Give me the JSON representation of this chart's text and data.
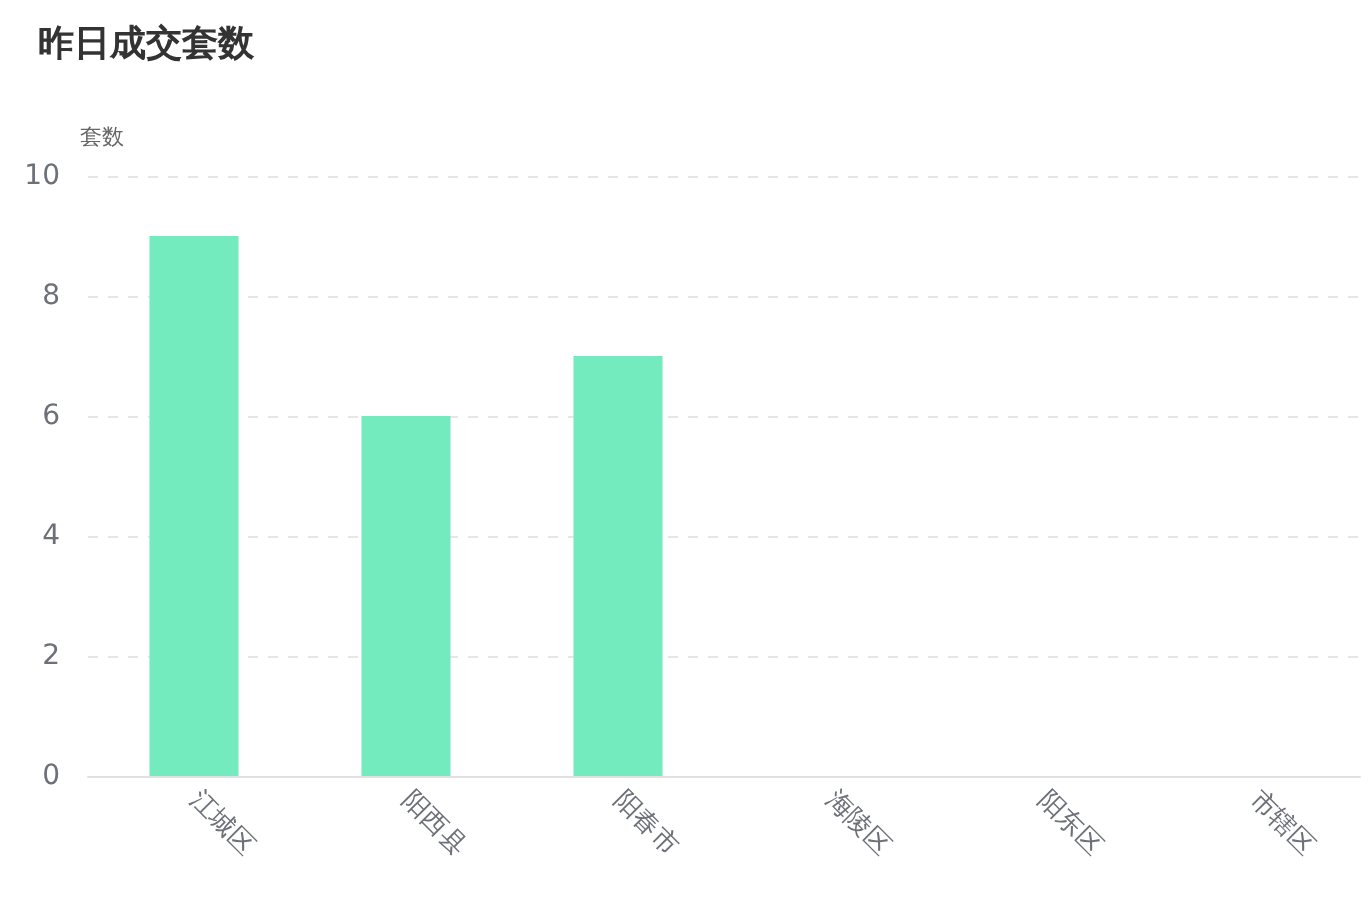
{
  "chart_data": {
    "type": "bar",
    "title": "昨日成交套数",
    "ylabel": "套数",
    "categories": [
      "江城区",
      "阳西县",
      "阳春市",
      "海陵区",
      "阳东区",
      "市辖区"
    ],
    "values": [
      9,
      6,
      7,
      0,
      0,
      0
    ],
    "color": "#73ebbe",
    "ylim": [
      0,
      10
    ],
    "yticks": [
      0,
      2,
      4,
      6,
      8,
      10
    ],
    "grid": "y"
  }
}
